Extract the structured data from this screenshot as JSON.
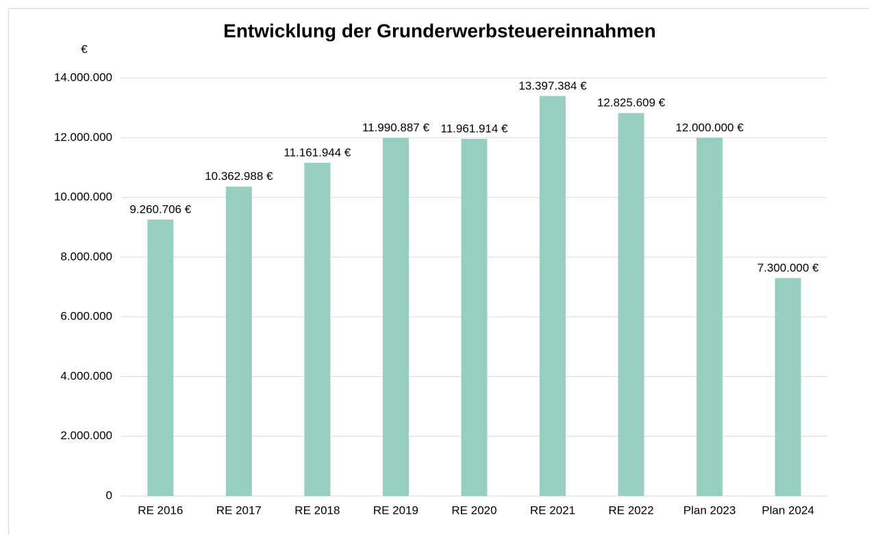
{
  "chart_data": {
    "type": "bar",
    "title": "Entwicklung der Grunderwerbsteuereinnahmen",
    "y_axis_label": "€",
    "categories": [
      "RE 2016",
      "RE 2017",
      "RE 2018",
      "RE 2019",
      "RE 2020",
      "RE 2021",
      "RE 2022",
      "Plan 2023",
      "Plan 2024"
    ],
    "values": [
      9260706,
      10362988,
      11161944,
      11990887,
      11961914,
      13397384,
      12825609,
      12000000,
      7300000
    ],
    "value_labels": [
      "9.260.706 €",
      "10.362.988 €",
      "11.161.944 €",
      "11.990.887 €",
      "11.961.914 €",
      "13.397.384 €",
      "12.825.609 €",
      "12.000.000 €",
      "7.300.000 €"
    ],
    "color": "#96cfc1",
    "ylim": [
      0,
      14000000
    ],
    "yticks": [
      0,
      {
        "value": 2000000,
        "label": "2.000.000"
      },
      {
        "value": 4000000,
        "label": "4.000.000"
      },
      {
        "value": 6000000,
        "label": "6.000.000"
      },
      {
        "value": 8000000,
        "label": "8.000.000"
      },
      {
        "value": 10000000,
        "label": "10.000.000"
      },
      {
        "value": 12000000,
        "label": "12.000.000"
      },
      {
        "value": 14000000,
        "label": "14.000.000"
      }
    ],
    "grid": true
  }
}
